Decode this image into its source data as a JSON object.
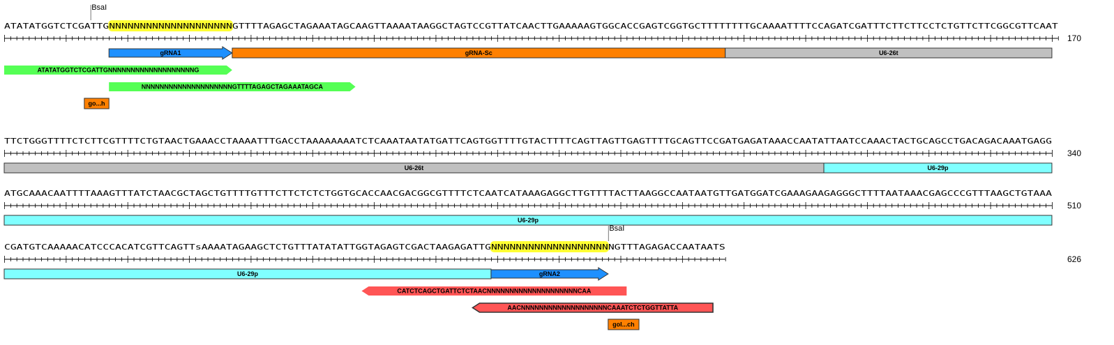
{
  "rows": [
    {
      "sequence": "ATATATGGTCTCGATTGNNNNNNNNNNNNNNNNNNNNGTTTTAGAGCTAGAAATAGCAAGTTAAAATAAGGCTAGTCCGTTATCAACTTGAAAAAGTGGCACCGAGTCGGTGCTTTTTTTTGCAAAATTTTCCAGATCGATTTCTTCTTCCTCTGTTCTTCGGCGTTCAAT",
      "end_position": "170",
      "highlights": [
        {
          "start": 17,
          "end": 37
        }
      ],
      "sites": [
        {
          "label": "BsaI",
          "pos": 14
        }
      ],
      "features": [
        {
          "name": "gRNA1",
          "label": "gRNA1",
          "start": 17,
          "end": 37,
          "color": "#1e90ff",
          "dir": "right",
          "lane": 0,
          "labelColor": "#000000"
        },
        {
          "name": "gRNA-Sc",
          "label": "gRNA-Sc",
          "start": 37,
          "end": 117,
          "color": "#ff8000",
          "dir": "none",
          "lane": 0,
          "labelColor": "#000000"
        },
        {
          "name": "U6-26t",
          "label": "U6-26t",
          "start": 117,
          "end": 170,
          "color": "#c0c0c0",
          "dir": "none",
          "lane": 0,
          "labelColor": "#000000"
        },
        {
          "name": "primer-1",
          "label": "ATATATGGTCTCGATTGNNNNNNNNNNNNNNNNNNNG",
          "start": 0,
          "end": 37,
          "color": "#55ff55",
          "dir": "right",
          "lane": 1,
          "labelColor": "#000000"
        },
        {
          "name": "primer-2",
          "label": "NNNNNNNNNNNNNNNNNNNNGTTTTAGAGCTAGAAATAGCA",
          "start": 17,
          "end": 57,
          "color": "#55ff55",
          "dir": "right",
          "lane": 2,
          "labelColor": "#000000"
        },
        {
          "name": "go-h",
          "label": "go...h",
          "start": 13,
          "end": 17,
          "color": "#ff8000",
          "dir": "box",
          "lane": 3,
          "labelColor": "#000000"
        }
      ]
    },
    {
      "sequence": "TTCTGGGTTTTCTCTTCGTTTTCTGTAACTGAAACCTAAAATTTGACCTAAAAAAAATCTCAAATAATATGATTCAGTGGTTTTGTACTTTTCAGTTAGTTGAGTTTTGCAGTTCCGATGAGATAAACCAATATTAATCCAAACTACTGCAGCCTGACAGACAAATGAGG",
      "end_position": "340",
      "highlights": [],
      "sites": [],
      "features": [
        {
          "name": "U6-26t",
          "label": "U6-26t",
          "start": 0,
          "end": 133,
          "color": "#c0c0c0",
          "dir": "none",
          "lane": 0,
          "labelColor": "#000000"
        },
        {
          "name": "U6-29p",
          "label": "U6-29p",
          "start": 133,
          "end": 170,
          "color": "#80ffff",
          "dir": "none",
          "lane": 0,
          "labelColor": "#000000"
        }
      ]
    },
    {
      "sequence": "ATGCAAACAATTTTAAAGTTTATCTAACGCTAGCTGTTTTGTTTCTTCTCTCTGGTGCACCAACGACGGCGTTTTCTCAATCATAAAGAGGCTTGTTTTACTTAAGGCCAATAATGTTGATGGATCGAAAGAAGAGGGCTTTTAATAAACGAGCCCGTTTAAGCTGTAAA",
      "end_position": "510",
      "highlights": [],
      "sites": [],
      "features": [
        {
          "name": "U6-29p",
          "label": "U6-29p",
          "start": 0,
          "end": 170,
          "color": "#80ffff",
          "dir": "none",
          "lane": 0,
          "labelColor": "#000000"
        }
      ]
    },
    {
      "sequence": "CGATGTCAAAAACATCCCACATCGTTCAGTTsAAAATAGAAGCTCTGTTTATATATTGGTAGAGTCGACTAAGAGATTGNNNNNNNNNNNNNNNNNNNNGTTTAGAGACCAATAATS",
      "end_position": "626",
      "highlights": [
        {
          "start": 79,
          "end": 98
        }
      ],
      "sites": [
        {
          "label": "BsaI",
          "pos": 98
        }
      ],
      "features": [
        {
          "name": "U6-29p",
          "label": "U6-29p",
          "start": 0,
          "end": 79,
          "color": "#80ffff",
          "dir": "none",
          "lane": 0,
          "labelColor": "#000000"
        },
        {
          "name": "gRNA2",
          "label": "gRNA2",
          "start": 79,
          "end": 98,
          "color": "#1e90ff",
          "dir": "right",
          "lane": 0,
          "labelColor": "#000000"
        },
        {
          "name": "primer-3",
          "label": "CATCTCAGCTGATTCTCTAACNNNNNNNNNNNNNNNNNNNNCAA",
          "start": 58,
          "end": 101,
          "color": "#ff5555",
          "dir": "left",
          "lane": 1,
          "labelColor": "#000000"
        },
        {
          "name": "primer-4",
          "label": "AACNNNNNNNNNNNNNNNNNNNCAAATCTCTGGTTATTA",
          "start": 76,
          "end": 115,
          "color": "#ff5555",
          "dir": "left",
          "lane": 2,
          "outline": true,
          "labelColor": "#000000"
        },
        {
          "name": "gol-ch",
          "label": "gol...ch",
          "start": 98,
          "end": 103,
          "color": "#ff8000",
          "dir": "box",
          "lane": 3,
          "labelColor": "#000000"
        }
      ]
    }
  ]
}
